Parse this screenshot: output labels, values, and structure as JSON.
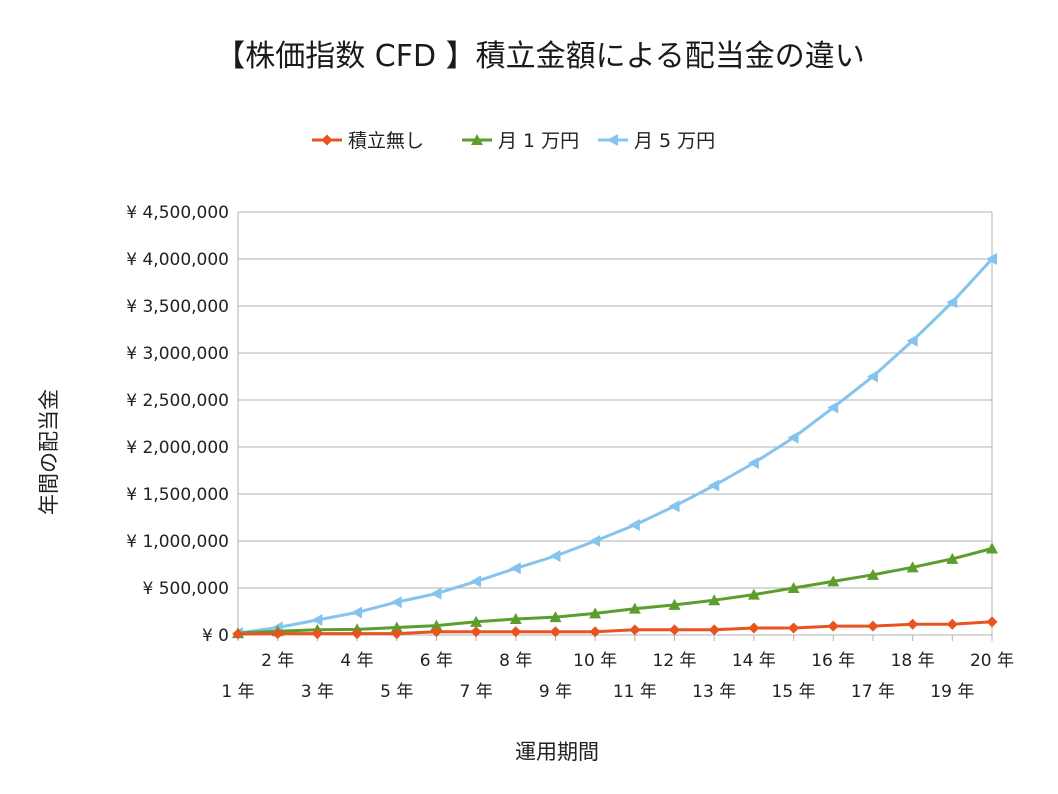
{
  "chart_data": {
    "type": "line",
    "title": "【株価指数 CFD 】積立金額による配当金の違い",
    "xlabel": "運用期間",
    "ylabel": "年間の配当金",
    "categories": [
      "1 年",
      "2 年",
      "3 年",
      "4 年",
      "5 年",
      "6 年",
      "7 年",
      "8 年",
      "9 年",
      "10 年",
      "11 年",
      "12 年",
      "13 年",
      "14 年",
      "15 年",
      "16 年",
      "17 年",
      "18 年",
      "19 年",
      "20 年"
    ],
    "ylim": [
      0,
      4500000
    ],
    "yticks": [
      0,
      500000,
      1000000,
      1500000,
      2000000,
      2500000,
      3000000,
      3500000,
      4000000,
      4500000
    ],
    "ytick_labels": [
      "¥ 0",
      "¥ 500,000",
      "¥ 1,000,000",
      "¥ 1,500,000",
      "¥ 2,000,000",
      "¥ 2,500,000",
      "¥ 3,000,000",
      "¥ 3,500,000",
      "¥ 4,000,000",
      "¥ 4,500,000"
    ],
    "grid": true,
    "legend_position": "top",
    "series": [
      {
        "name": "積立無し",
        "color": "#e8541f",
        "marker": "diamond",
        "values": [
          10000,
          15000,
          15000,
          15000,
          15000,
          35000,
          35000,
          35000,
          35000,
          35000,
          55000,
          55000,
          55000,
          75000,
          75000,
          95000,
          95000,
          115000,
          115000,
          140000
        ]
      },
      {
        "name": "月 1 万円",
        "color": "#5c9e2e",
        "marker": "triangle-up",
        "values": [
          20000,
          40000,
          55000,
          60000,
          80000,
          100000,
          140000,
          170000,
          190000,
          230000,
          280000,
          320000,
          370000,
          430000,
          500000,
          570000,
          640000,
          720000,
          810000,
          920000
        ]
      },
      {
        "name": "月 5 万円",
        "color": "#85c4ee",
        "marker": "triangle-left",
        "values": [
          20000,
          80000,
          160000,
          240000,
          350000,
          440000,
          570000,
          710000,
          840000,
          1000000,
          1170000,
          1370000,
          1590000,
          1830000,
          2100000,
          2420000,
          2750000,
          3130000,
          3540000,
          4000000
        ]
      }
    ]
  }
}
